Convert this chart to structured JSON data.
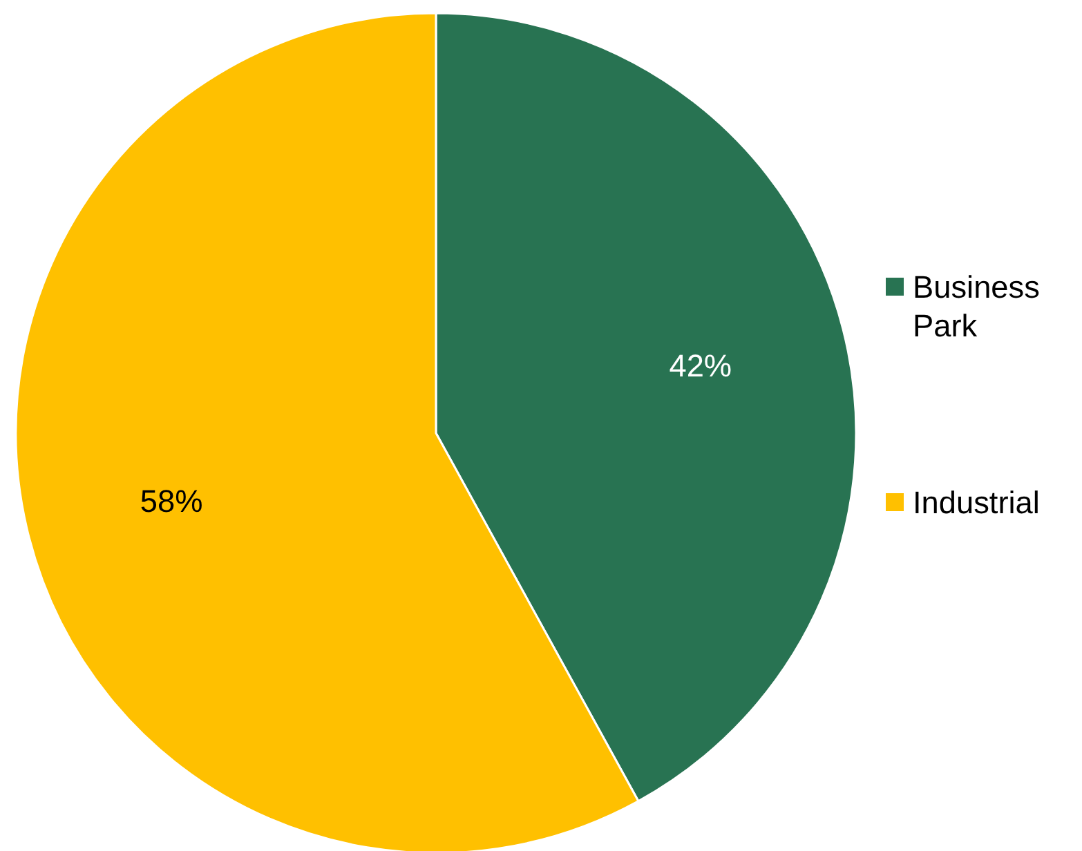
{
  "chart_data": {
    "type": "pie",
    "categories": [
      "Business Park",
      "Industrial"
    ],
    "values": [
      42,
      58
    ],
    "colors": [
      "#287352",
      "#ffc000"
    ],
    "value_labels": [
      "42%",
      "58%"
    ],
    "legend": "right"
  }
}
